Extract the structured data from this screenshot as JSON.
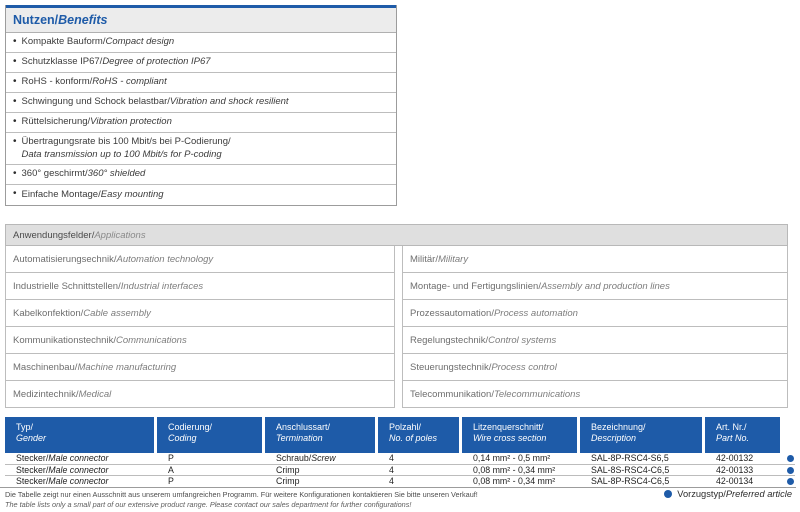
{
  "colors": {
    "brand_blue": "#1e5ba8",
    "bar_gray": "#dfdfdf",
    "border_gray": "#bdbdbd"
  },
  "benefits": {
    "title_de": "Nutzen/",
    "title_en": "Benefits",
    "items": [
      {
        "de": "Kompakte Bauform/",
        "en": "Compact design"
      },
      {
        "de": "Schutzklasse IP67/",
        "en": "Degree of protection IP67"
      },
      {
        "de": "RoHS - konform/",
        "en": "RoHS - compliant"
      },
      {
        "de": "Schwingung und Schock belastbar/",
        "en": "Vibration and shock resilient"
      },
      {
        "de": "Rüttelsicherung/",
        "en": "Vibration protection"
      },
      {
        "de": "Übertragungsrate bis 100 Mbit/s bei P-Codierung/",
        "en": "Data transmission up to 100 Mbit/s for P-coding"
      },
      {
        "de": "360° geschirmt/",
        "en": "360° shielded"
      },
      {
        "de": "Einfache Montage/",
        "en": "Easy mounting"
      }
    ]
  },
  "applications": {
    "title_de": "Anwendungsfelder/",
    "title_en": "Applications",
    "left": [
      {
        "de": "Automatisierungsechnik/",
        "en": "Automation technology"
      },
      {
        "de": "Industrielle Schnittstellen/",
        "en": "Industrial interfaces"
      },
      {
        "de": "Kabelkonfektion/",
        "en": "Cable assembly"
      },
      {
        "de": "Kommunikationstechnik/",
        "en": "Communications"
      },
      {
        "de": "Maschinenbau/",
        "en": "Machine manufacturing"
      },
      {
        "de": "Medizintechnik/",
        "en": "Medical"
      }
    ],
    "right": [
      {
        "de": "Militär/",
        "en": "Military"
      },
      {
        "de": "Montage- und Fertigungslinien/",
        "en": "Assembly and production lines"
      },
      {
        "de": "Prozessautomation/",
        "en": "Process automation"
      },
      {
        "de": "Regelungstechnik/",
        "en": "Control systems"
      },
      {
        "de": "Steuerungstechnik/",
        "en": "Process control"
      },
      {
        "de": "Telecommunikation/",
        "en": "Telecommunications"
      }
    ]
  },
  "product_table": {
    "columns": [
      {
        "de": "Typ/",
        "en": "Gender"
      },
      {
        "de": "Codierung/",
        "en": "Coding"
      },
      {
        "de": "Anschlussart/",
        "en": "Termination"
      },
      {
        "de": "Polzahl/",
        "en": "No. of poles"
      },
      {
        "de": "Litzenquerschnitt/",
        "en": "Wire cross section"
      },
      {
        "de": "Bezeichnung/",
        "en": "Description"
      },
      {
        "de": "Art. Nr./",
        "en": "Part No."
      }
    ],
    "rows": [
      {
        "gender_de": "Stecker/",
        "gender_en": "Male connector",
        "coding": "P",
        "termination_de": "Schraub/",
        "termination_en": "Screw",
        "poles": "4",
        "wire": "0,14 mm² - 0,5 mm²",
        "description": "SAL-8P-RSC4-S6,5",
        "part_no": "42-00132"
      },
      {
        "gender_de": "Stecker/",
        "gender_en": "Male connector",
        "coding": "A",
        "termination_de": "Crimp",
        "termination_en": "",
        "poles": "4",
        "wire": "0,08 mm² - 0,34 mm²",
        "description": "SAL-8S-RSC4-C6,5",
        "part_no": "42-00133"
      },
      {
        "gender_de": "Stecker/",
        "gender_en": "Male connector",
        "coding": "P",
        "termination_de": "Crimp",
        "termination_en": "",
        "poles": "4",
        "wire": "0,08 mm² - 0,34 mm²",
        "description": "SAL-8P-RSC4-C6,5",
        "part_no": "42-00134"
      }
    ]
  },
  "footer": {
    "note_de": "Die Tabelle zeigt nur einen Ausschnitt aus unserem umfangreichen Programm. Für weitere Konfigurationen kontaktieren Sie bitte unseren Verkauf!",
    "note_en": "The table lists only a small part of our extensive product range. Please contact our sales department for further configurations!",
    "legend_de": "Vorzugstyp/",
    "legend_en": "Preferred article"
  }
}
